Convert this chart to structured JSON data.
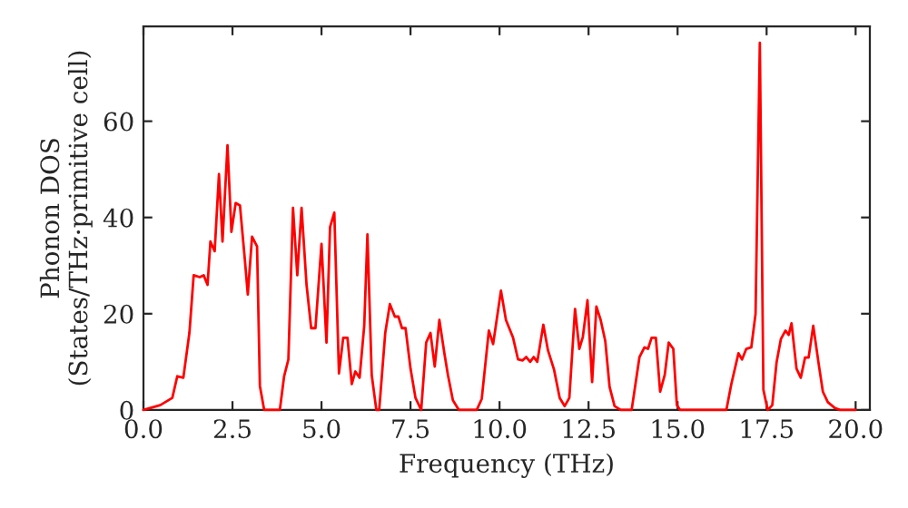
{
  "chart_data": {
    "type": "line",
    "xlabel": "Frequency (THz)",
    "ylabel": "Phonon DOS\n(States/THz·primitive cell)",
    "xlim": [
      0,
      20.4
    ],
    "ylim": [
      0,
      79.7
    ],
    "xticks": [
      {
        "value": 0,
        "label": "0.0"
      },
      {
        "value": 2.5,
        "label": "2.5"
      },
      {
        "value": 5,
        "label": "5.0"
      },
      {
        "value": 7.5,
        "label": "7.5"
      },
      {
        "value": 10,
        "label": "10.0"
      },
      {
        "value": 12.5,
        "label": "12.5"
      },
      {
        "value": 15,
        "label": "15.0"
      },
      {
        "value": 17.5,
        "label": "17.5"
      },
      {
        "value": 20,
        "label": "20.0"
      }
    ],
    "yticks": [
      0,
      20,
      40,
      60
    ],
    "grid": false,
    "legend": false,
    "marker": "none",
    "line_style": "solid",
    "series": [
      {
        "color": "#ff0000",
        "x": [
          0,
          0.47,
          0.81,
          0.95,
          1.12,
          1.29,
          1.41,
          1.58,
          1.69,
          1.8,
          1.88,
          2.0,
          2.12,
          2.22,
          2.36,
          2.47,
          2.59,
          2.71,
          2.85,
          2.93,
          3.05,
          3.19,
          3.27,
          3.39,
          3.83,
          3.95,
          4.07,
          4.2,
          4.32,
          4.44,
          4.58,
          4.71,
          4.83,
          5.0,
          5.14,
          5.24,
          5.36,
          5.49,
          5.61,
          5.73,
          5.85,
          5.95,
          6.07,
          6.2,
          6.29,
          6.41,
          6.54,
          6.62,
          6.79,
          6.92,
          7.06,
          7.16,
          7.26,
          7.36,
          7.5,
          7.64,
          7.8,
          7.94,
          8.06,
          8.18,
          8.31,
          8.45,
          8.55,
          8.69,
          8.86,
          9.36,
          9.5,
          9.7,
          9.82,
          10.04,
          10.18,
          10.38,
          10.52,
          10.65,
          10.75,
          10.86,
          10.96,
          11.06,
          11.23,
          11.36,
          11.53,
          11.69,
          11.83,
          11.96,
          12.12,
          12.24,
          12.34,
          12.47,
          12.6,
          12.72,
          12.84,
          12.97,
          13.09,
          13.23,
          13.4,
          13.71,
          13.93,
          14.07,
          14.17,
          14.27,
          14.39,
          14.51,
          14.64,
          14.75,
          14.88,
          14.98,
          15.07,
          16.37,
          16.51,
          16.71,
          16.81,
          16.93,
          17.07,
          17.19,
          17.31,
          17.41,
          17.53,
          17.66,
          17.78,
          17.9,
          18.03,
          18.12,
          18.2,
          18.34,
          18.46,
          18.58,
          18.68,
          18.81,
          18.97,
          19.08,
          19.22,
          19.42,
          19.56,
          20.0
        ],
        "values": [
          0,
          1,
          2.5,
          7,
          6.7,
          16,
          28,
          27.6,
          28,
          26,
          35,
          33,
          49,
          35,
          55,
          37,
          43,
          42.5,
          31,
          24,
          36,
          34,
          5,
          0,
          0,
          7,
          10.5,
          42,
          28,
          42,
          26,
          17,
          17,
          34.5,
          14,
          38,
          41,
          7.6,
          15,
          15,
          5.4,
          8,
          6.7,
          17.5,
          36.5,
          7.3,
          0,
          0,
          16,
          22,
          19.4,
          19.4,
          17,
          17,
          8.6,
          2.5,
          0,
          14,
          16,
          9,
          18.7,
          11.8,
          7.3,
          2,
          0,
          0,
          2.3,
          16.5,
          13.7,
          24.8,
          18.7,
          15,
          10.5,
          10.3,
          11,
          10,
          11,
          10,
          17.7,
          12.4,
          8.4,
          2.5,
          0.8,
          2.5,
          21,
          12.7,
          15.2,
          22.8,
          5.8,
          21.5,
          18.7,
          14.3,
          4.8,
          0.8,
          0,
          0,
          11,
          13,
          12.7,
          15,
          15,
          3.8,
          7.3,
          14,
          12.7,
          1,
          0,
          0,
          5.4,
          11.8,
          10.5,
          12.7,
          13,
          20,
          76.3,
          4.2,
          0,
          1,
          9.9,
          14.7,
          16.5,
          15.6,
          18,
          8.6,
          6.7,
          10.9,
          10.9,
          17.5,
          9.2,
          3.8,
          1.6,
          0.4,
          0,
          0
        ]
      }
    ]
  }
}
